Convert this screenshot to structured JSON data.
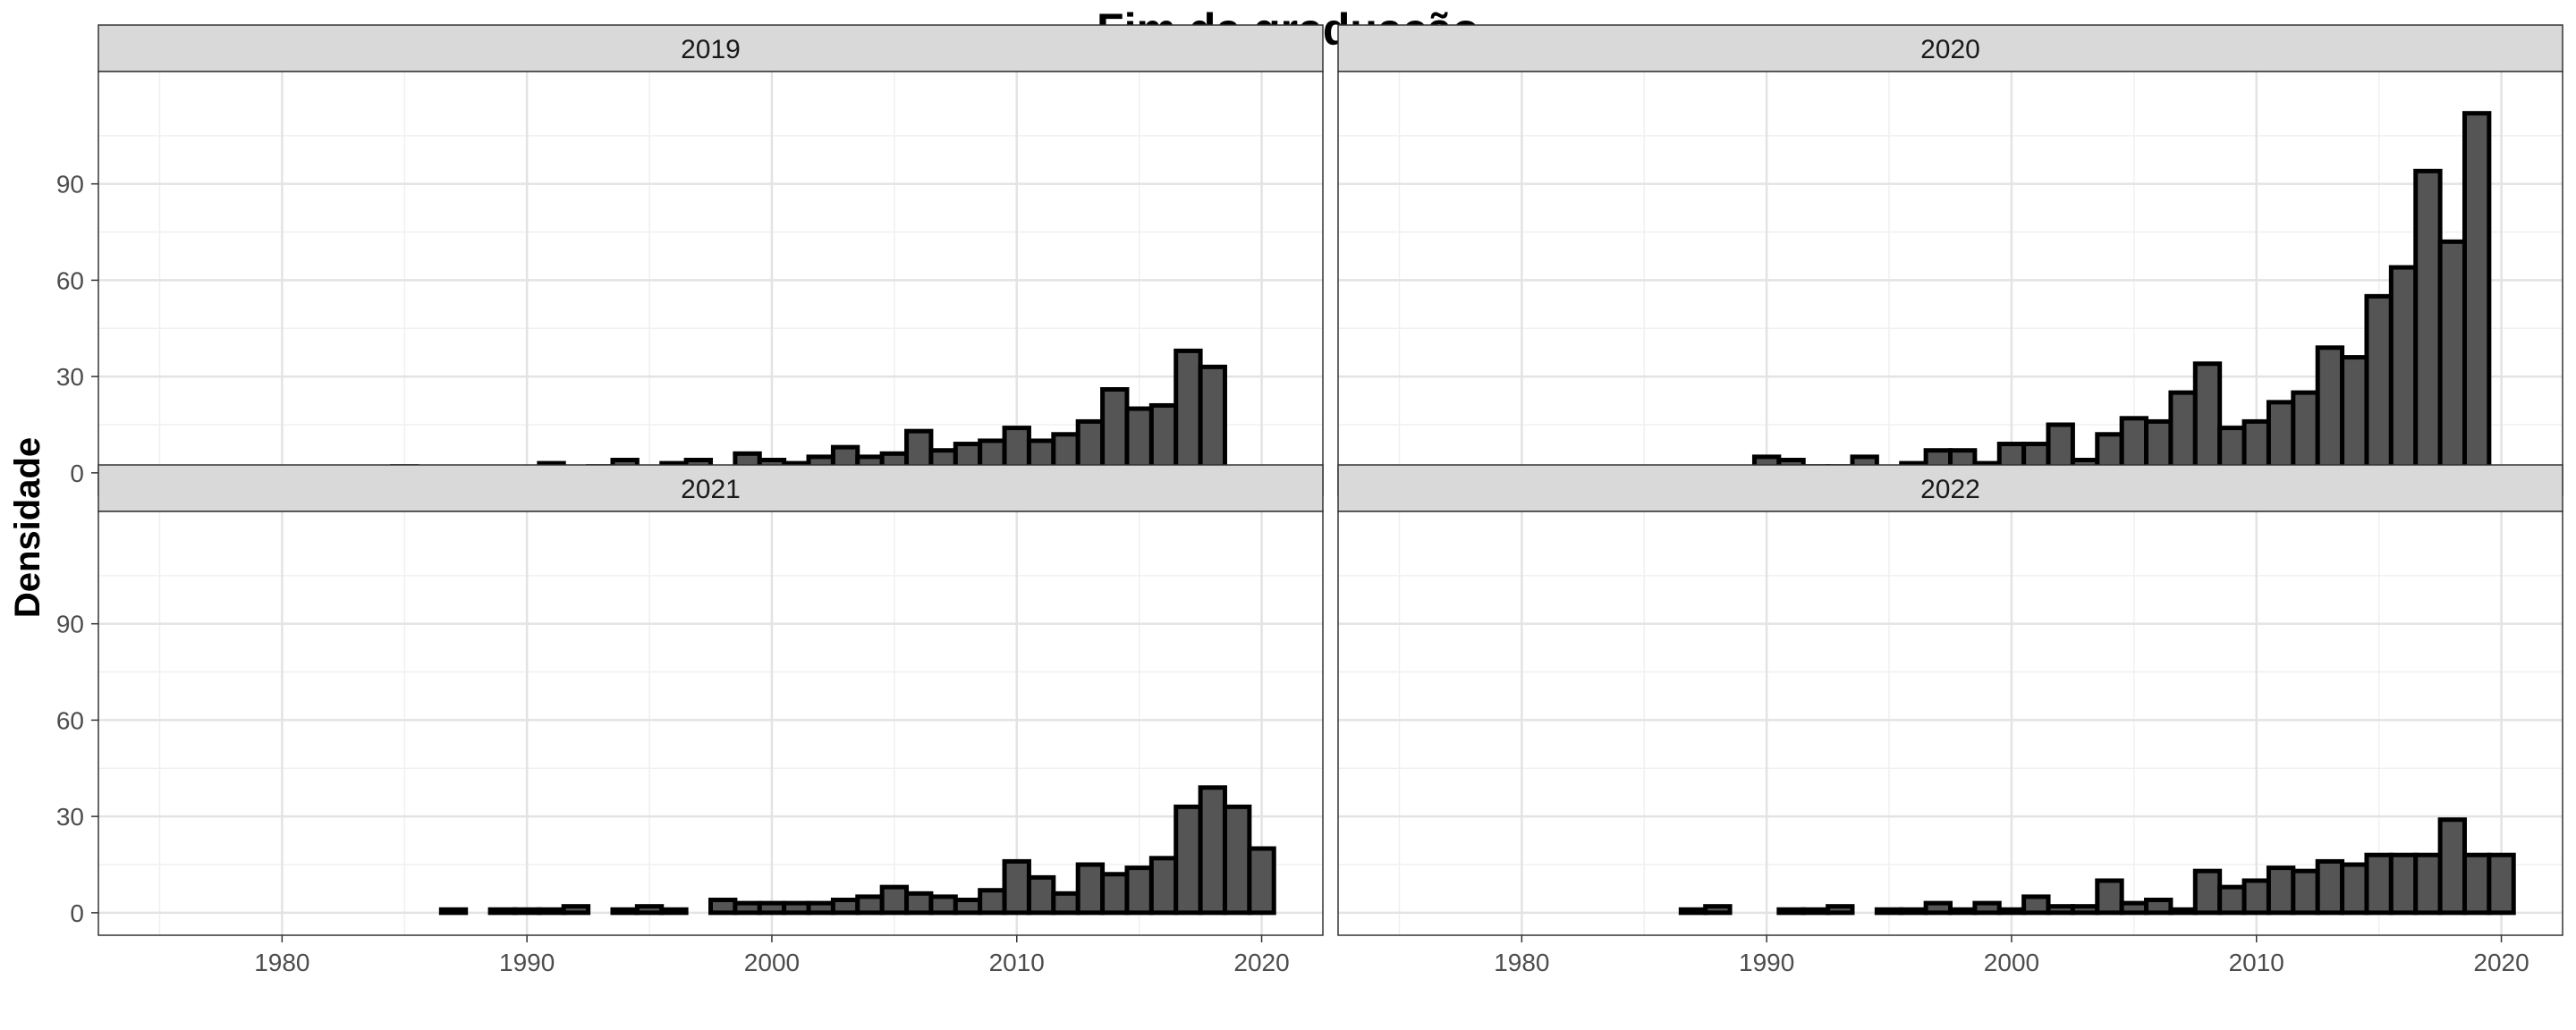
{
  "chart_data": {
    "type": "bar",
    "title": "Fim da graduação",
    "xlabel": "",
    "ylabel": "Densidade",
    "xlim": [
      1972.5,
      2022.5
    ],
    "ylim": [
      -7,
      125
    ],
    "x_ticks": [
      1980,
      1990,
      2000,
      2010,
      2020
    ],
    "x_tick_labels": [
      "1980",
      "1990",
      "2000",
      "2010",
      "2020"
    ],
    "y_ticks": [
      0,
      30,
      60,
      90
    ],
    "y_tick_labels": [
      "0",
      "30",
      "60",
      "90"
    ],
    "grid": true,
    "bin_width": 1,
    "bar_fill": "#555555",
    "bar_outline": "#000000",
    "strip_fill": "#d9d9d9",
    "panels": [
      {
        "label": "2019",
        "x": [
          1975,
          1981,
          1982,
          1983,
          1984,
          1985,
          1989,
          1990,
          1991,
          1992,
          1993,
          1994,
          1996,
          1997,
          1998,
          1999,
          2000,
          2001,
          2002,
          2003,
          2004,
          2005,
          2006,
          2007,
          2008,
          2009,
          2010,
          2011,
          2012,
          2013,
          2014,
          2015,
          2016,
          2017,
          2018
        ],
        "values": [
          1,
          1,
          1,
          1,
          1,
          2,
          1,
          1,
          3,
          1,
          2,
          4,
          3,
          4,
          1,
          6,
          4,
          3,
          5,
          8,
          5,
          6,
          13,
          7,
          9,
          10,
          14,
          10,
          12,
          16,
          26,
          20,
          21,
          38,
          33
        ]
      },
      {
        "label": "2020",
        "x": [
          1989,
          1990,
          1991,
          1992,
          1993,
          1994,
          1995,
          1996,
          1997,
          1998,
          1999,
          2000,
          2001,
          2002,
          2003,
          2004,
          2005,
          2006,
          2007,
          2008,
          2009,
          2010,
          2011,
          2012,
          2013,
          2014,
          2015,
          2016,
          2017,
          2018,
          2019
        ],
        "values": [
          1,
          5,
          4,
          2,
          2,
          5,
          1,
          3,
          7,
          7,
          3,
          9,
          9,
          15,
          4,
          12,
          17,
          16,
          25,
          34,
          14,
          16,
          22,
          25,
          39,
          36,
          55,
          64,
          94,
          72,
          112
        ]
      },
      {
        "label": "2021",
        "x": [
          1987,
          1989,
          1990,
          1991,
          1992,
          1994,
          1995,
          1996,
          1998,
          1999,
          2000,
          2001,
          2002,
          2003,
          2004,
          2005,
          2006,
          2007,
          2008,
          2009,
          2010,
          2011,
          2012,
          2013,
          2014,
          2015,
          2016,
          2017,
          2018,
          2019,
          2020
        ],
        "values": [
          1,
          1,
          1,
          1,
          2,
          1,
          2,
          1,
          4,
          3,
          3,
          3,
          3,
          4,
          5,
          8,
          6,
          5,
          4,
          7,
          16,
          11,
          6,
          15,
          12,
          14,
          17,
          33,
          39,
          33,
          20
        ]
      },
      {
        "label": "2022",
        "x": [
          1987,
          1988,
          1991,
          1992,
          1993,
          1995,
          1996,
          1997,
          1998,
          1999,
          2000,
          2001,
          2002,
          2003,
          2004,
          2005,
          2006,
          2007,
          2008,
          2009,
          2010,
          2011,
          2012,
          2013,
          2014,
          2015,
          2016,
          2017,
          2018,
          2019,
          2020
        ],
        "values": [
          1,
          2,
          1,
          1,
          2,
          1,
          1,
          3,
          1,
          3,
          1,
          5,
          2,
          2,
          10,
          3,
          4,
          1,
          13,
          8,
          10,
          14,
          13,
          16,
          15,
          18,
          18,
          18,
          29,
          18,
          18
        ]
      }
    ]
  }
}
